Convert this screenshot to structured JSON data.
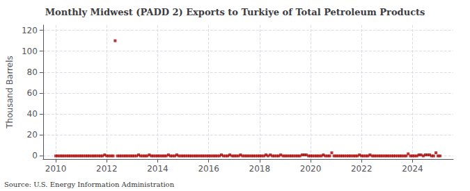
{
  "chart_data": {
    "type": "scatter",
    "title": "Monthly Midwest (PADD 2) Exports to Turkiye of Total Petroleum Products",
    "ylabel": "Thousand Barrels",
    "annotation": "Source: U.S. Energy Information Administration",
    "color": "#aa0000",
    "marker": "square",
    "grid": true,
    "xlim": [
      2009.5,
      2025.6
    ],
    "ylim": [
      -3,
      125
    ],
    "xticks": [
      2010,
      2012,
      2014,
      2016,
      2018,
      2020,
      2022,
      2024
    ],
    "yticks": [
      0,
      20,
      40,
      60,
      80,
      100,
      120
    ],
    "x": [
      2010.0,
      2010.08,
      2010.17,
      2010.25,
      2010.33,
      2010.42,
      2010.5,
      2010.58,
      2010.67,
      2010.75,
      2010.83,
      2010.92,
      2011.0,
      2011.08,
      2011.17,
      2011.25,
      2011.33,
      2011.42,
      2011.5,
      2011.58,
      2011.67,
      2011.75,
      2011.83,
      2011.92,
      2012.0,
      2012.08,
      2012.17,
      2012.25,
      2012.33,
      2012.42,
      2012.5,
      2012.58,
      2012.67,
      2012.75,
      2012.83,
      2012.92,
      2013.0,
      2013.08,
      2013.17,
      2013.25,
      2013.33,
      2013.42,
      2013.5,
      2013.58,
      2013.67,
      2013.75,
      2013.83,
      2013.92,
      2014.0,
      2014.08,
      2014.17,
      2014.25,
      2014.33,
      2014.42,
      2014.5,
      2014.58,
      2014.67,
      2014.75,
      2014.83,
      2014.92,
      2015.0,
      2015.08,
      2015.17,
      2015.25,
      2015.33,
      2015.42,
      2015.5,
      2015.58,
      2015.67,
      2015.75,
      2015.83,
      2015.92,
      2016.0,
      2016.08,
      2016.17,
      2016.25,
      2016.33,
      2016.42,
      2016.5,
      2016.58,
      2016.67,
      2016.75,
      2016.83,
      2016.92,
      2017.0,
      2017.08,
      2017.17,
      2017.25,
      2017.33,
      2017.42,
      2017.5,
      2017.58,
      2017.67,
      2017.75,
      2017.83,
      2017.92,
      2018.0,
      2018.08,
      2018.17,
      2018.25,
      2018.33,
      2018.42,
      2018.5,
      2018.58,
      2018.67,
      2018.75,
      2018.83,
      2018.92,
      2019.0,
      2019.08,
      2019.17,
      2019.25,
      2019.33,
      2019.42,
      2019.5,
      2019.58,
      2019.67,
      2019.75,
      2019.83,
      2019.92,
      2020.0,
      2020.08,
      2020.17,
      2020.25,
      2020.33,
      2020.42,
      2020.5,
      2020.58,
      2020.67,
      2020.75,
      2020.83,
      2020.92,
      2021.0,
      2021.08,
      2021.17,
      2021.25,
      2021.33,
      2021.42,
      2021.5,
      2021.58,
      2021.67,
      2021.75,
      2021.83,
      2021.92,
      2022.0,
      2022.08,
      2022.17,
      2022.25,
      2022.33,
      2022.42,
      2022.5,
      2022.58,
      2022.67,
      2022.75,
      2022.83,
      2022.92,
      2023.0,
      2023.08,
      2023.17,
      2023.25,
      2023.33,
      2023.42,
      2023.5,
      2023.58,
      2023.67,
      2023.75,
      2023.83,
      2023.92,
      2024.0,
      2024.08,
      2024.17,
      2024.25,
      2024.33,
      2024.42,
      2024.5,
      2024.58,
      2024.67,
      2024.75,
      2024.83,
      2024.92,
      2025.0,
      2025.08
    ],
    "values": [
      0,
      0,
      0,
      0,
      0,
      0,
      0,
      0,
      0,
      0,
      0,
      0,
      0,
      0,
      0,
      0,
      0,
      0,
      0,
      0,
      0,
      0,
      0,
      1,
      0,
      0,
      0,
      0,
      110,
      0,
      0,
      0,
      0,
      0,
      0,
      0,
      0,
      0,
      0,
      1,
      0,
      0,
      0,
      0,
      1,
      0,
      0,
      0,
      0,
      0,
      0,
      0,
      0,
      1,
      0,
      0,
      0,
      1,
      0,
      0,
      0,
      0,
      0,
      0,
      0,
      0,
      0,
      0,
      0,
      0,
      0,
      0,
      0,
      0,
      0,
      0,
      0,
      0,
      1,
      0,
      0,
      0,
      1,
      0,
      0,
      0,
      0,
      1,
      0,
      0,
      0,
      0,
      0,
      0,
      0,
      0,
      0,
      0,
      0,
      1,
      0,
      1,
      0,
      0,
      0,
      0,
      1,
      0,
      0,
      0,
      0,
      0,
      0,
      0,
      0,
      0,
      1,
      1,
      1,
      0,
      0,
      0,
      0,
      0,
      0,
      0,
      1,
      0,
      0,
      0,
      3,
      0,
      0,
      0,
      0,
      0,
      0,
      0,
      0,
      0,
      0,
      0,
      0,
      1,
      0,
      0,
      0,
      0,
      1,
      0,
      0,
      0,
      0,
      0,
      0,
      0,
      0,
      0,
      0,
      0,
      0,
      0,
      0,
      0,
      0,
      0,
      2,
      0,
      0,
      0,
      0,
      1,
      1,
      0,
      1,
      1,
      1,
      0,
      0,
      3,
      0,
      0
    ]
  }
}
